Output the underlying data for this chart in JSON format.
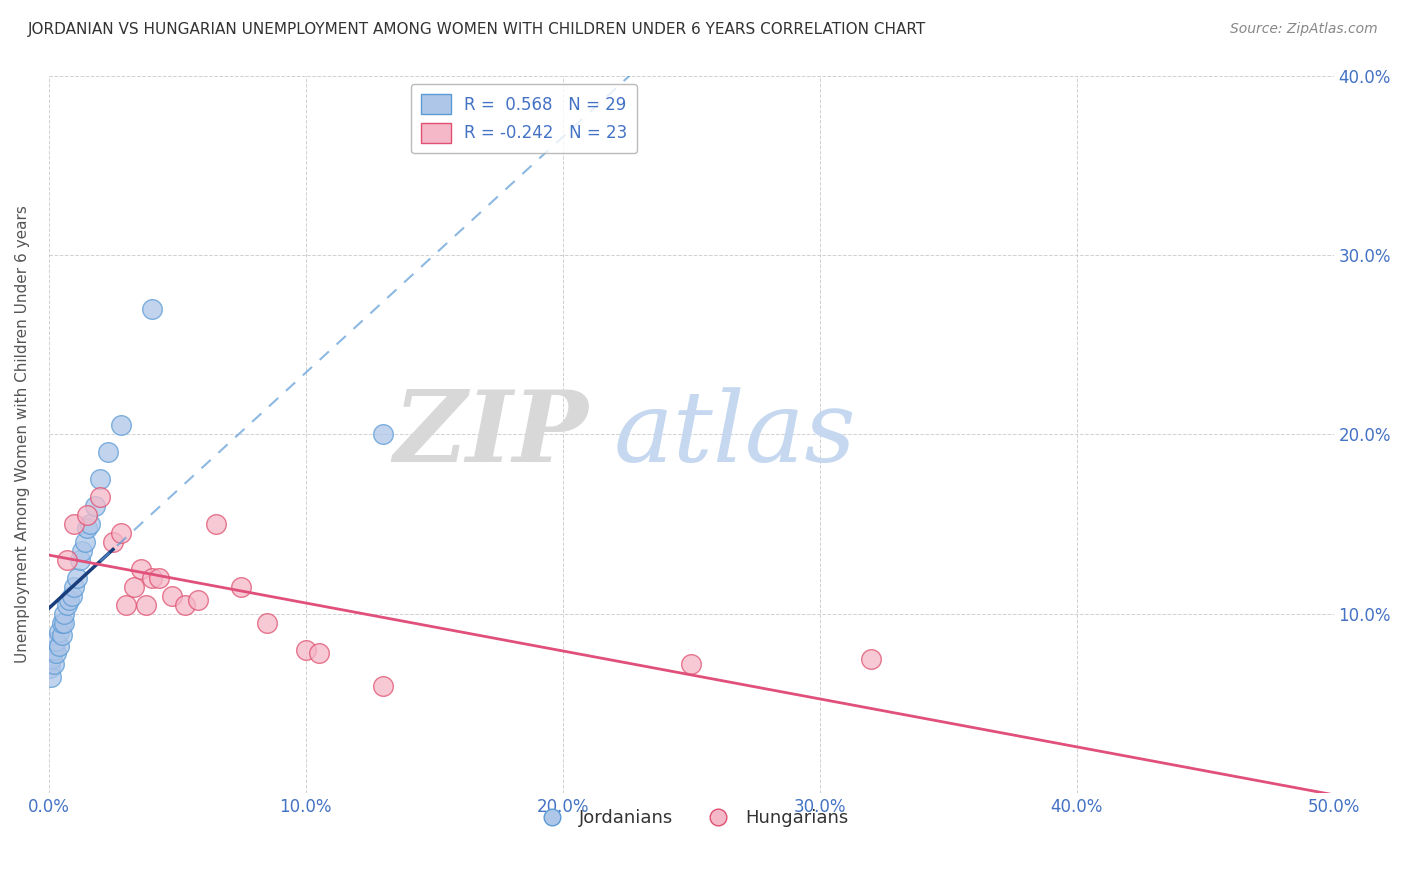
{
  "title": "JORDANIAN VS HUNGARIAN UNEMPLOYMENT AMONG WOMEN WITH CHILDREN UNDER 6 YEARS CORRELATION CHART",
  "source": "Source: ZipAtlas.com",
  "ylabel": "Unemployment Among Women with Children Under 6 years",
  "legend_jordanians": "Jordanians",
  "legend_hungarians": "Hungarians",
  "xmin": 0.0,
  "xmax": 0.5,
  "ymin": 0.0,
  "ymax": 0.4,
  "jordanian_x": [
    0.0005,
    0.001,
    0.001,
    0.002,
    0.002,
    0.003,
    0.003,
    0.004,
    0.004,
    0.005,
    0.005,
    0.006,
    0.006,
    0.007,
    0.008,
    0.009,
    0.01,
    0.011,
    0.012,
    0.013,
    0.014,
    0.015,
    0.016,
    0.018,
    0.02,
    0.023,
    0.028,
    0.04,
    0.13
  ],
  "jordanian_y": [
    0.07,
    0.065,
    0.075,
    0.072,
    0.08,
    0.078,
    0.085,
    0.082,
    0.09,
    0.088,
    0.095,
    0.095,
    0.1,
    0.105,
    0.108,
    0.11,
    0.115,
    0.12,
    0.13,
    0.135,
    0.14,
    0.148,
    0.15,
    0.16,
    0.175,
    0.19,
    0.205,
    0.27,
    0.2
  ],
  "hungarian_x": [
    0.007,
    0.01,
    0.015,
    0.02,
    0.025,
    0.028,
    0.03,
    0.033,
    0.036,
    0.038,
    0.04,
    0.043,
    0.048,
    0.053,
    0.058,
    0.065,
    0.075,
    0.085,
    0.1,
    0.105,
    0.13,
    0.25,
    0.32
  ],
  "hungarian_y": [
    0.13,
    0.15,
    0.155,
    0.165,
    0.14,
    0.145,
    0.105,
    0.115,
    0.125,
    0.105,
    0.12,
    0.12,
    0.11,
    0.105,
    0.108,
    0.15,
    0.115,
    0.095,
    0.08,
    0.078,
    0.06,
    0.072,
    0.075
  ],
  "blue_fill": "#aec6e8",
  "blue_edge": "#5b9bd5",
  "pink_fill": "#f4b8c8",
  "pink_edge": "#e05070",
  "trend_blue": "#1a3d7c",
  "trend_pink": "#e0507a",
  "watermark_zip_color": "#d8d8d8",
  "watermark_atlas_color": "#c5d8f0",
  "background": "#ffffff",
  "grid_color": "#cccccc",
  "tick_color": "#4472c4",
  "ylabel_color": "#555555",
  "title_color": "#333333",
  "source_color": "#888888",
  "legend_label_color": "#333333",
  "legend_value_color": "#4472c4"
}
